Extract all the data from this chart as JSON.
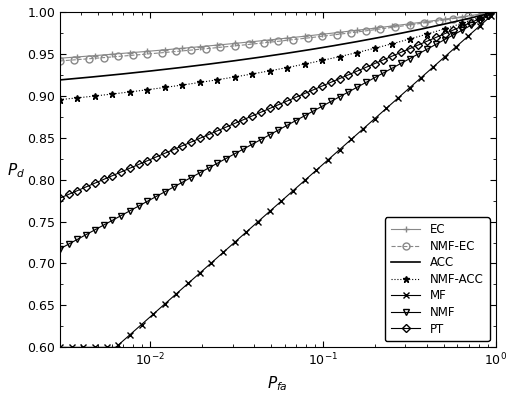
{
  "title": "",
  "xlabel": "P_fa",
  "ylabel": "P_d",
  "xlim": [
    0.003,
    1.0
  ],
  "ylim": [
    0.6,
    1.0
  ],
  "yticks": [
    0.6,
    0.65,
    0.7,
    0.75,
    0.8,
    0.85,
    0.9,
    0.95,
    1.0
  ],
  "series": [
    {
      "label": "EC",
      "style": "-",
      "marker": "+",
      "color": "#888888",
      "linewidth": 0.8,
      "markersize": 5,
      "markevery": 12
    },
    {
      "label": "NMF-EC",
      "style": "--",
      "marker": "o",
      "color": "#888888",
      "linewidth": 0.8,
      "markersize": 5,
      "markevery": 10,
      "fillstyle": "none"
    },
    {
      "label": "ACC",
      "style": "-",
      "marker": "",
      "color": "#000000",
      "linewidth": 1.2,
      "markersize": 0,
      "markevery": 1
    },
    {
      "label": "NMF-ACC",
      "style": ":",
      "marker": "*",
      "color": "#000000",
      "linewidth": 0.8,
      "markersize": 5,
      "markevery": 12
    },
    {
      "label": "MF",
      "style": "-",
      "marker": "x",
      "color": "#000000",
      "linewidth": 0.8,
      "markersize": 5,
      "markevery": 8
    },
    {
      "label": "NMF",
      "style": "-",
      "marker": "v",
      "color": "#000000",
      "linewidth": 0.8,
      "markersize": 5,
      "markevery": 6,
      "fillstyle": "none"
    },
    {
      "label": "PT",
      "style": "-",
      "marker": "D",
      "color": "#000000",
      "linewidth": 0.8,
      "markersize": 4,
      "markevery": 6,
      "fillstyle": "none"
    }
  ],
  "background_color": "#ffffff"
}
